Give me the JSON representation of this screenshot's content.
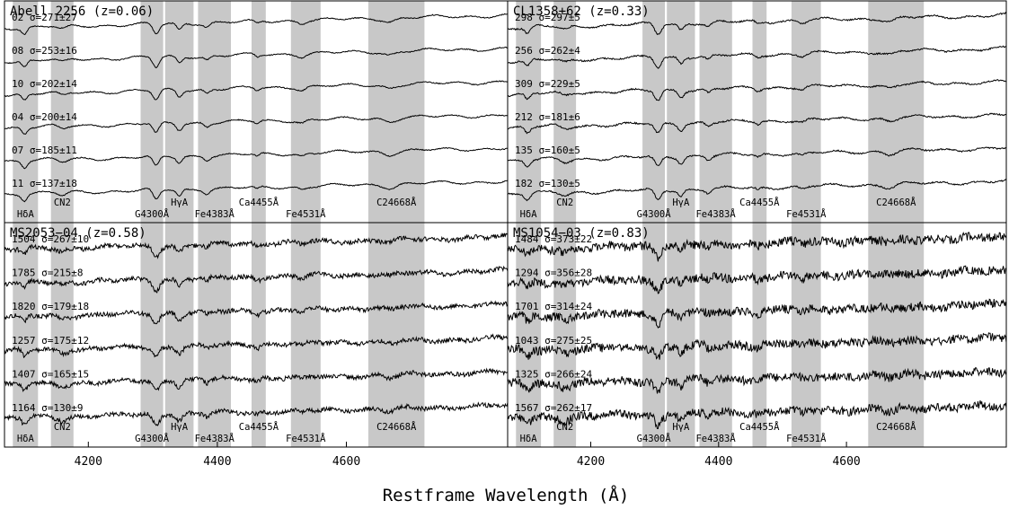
{
  "chart_data": {
    "type": "line",
    "xlabel": "Restframe Wavelength (Å)",
    "xlim": [
      4070,
      4850
    ],
    "xticks": [
      4200,
      4400,
      4600
    ],
    "bands": [
      {
        "name": "Hδ_A",
        "lo": 4083,
        "hi": 4122,
        "label": "HδA",
        "sub": "A"
      },
      {
        "name": "CN_2",
        "lo": 4142,
        "hi": 4177,
        "label": "CN2",
        "sub": "2"
      },
      {
        "name": "G4300",
        "lo": 4281,
        "hi": 4316,
        "label": "G4300Å",
        "sub": ""
      },
      {
        "name": "Hγ_A",
        "lo": 4319,
        "hi": 4363,
        "label": "HγA",
        "sub": "A"
      },
      {
        "name": "Fe4383",
        "lo": 4370,
        "hi": 4421,
        "label": "Fe4383Å",
        "sub": ""
      },
      {
        "name": "Ca4455",
        "lo": 4453,
        "hi": 4475,
        "label": "Ca4455Å",
        "sub": ""
      },
      {
        "name": "Fe4531",
        "lo": 4514,
        "hi": 4560,
        "label": "Fe4531Å",
        "sub": ""
      },
      {
        "name": "C_2 4668",
        "lo": 4634,
        "hi": 4721,
        "label": "C24668Å",
        "sub": "2"
      }
    ],
    "panels": [
      {
        "title": "Abell 2256 (z=0.06)",
        "spectra": [
          {
            "label": "02 σ=271±27"
          },
          {
            "label": "08 σ=253±16"
          },
          {
            "label": "10 σ=202±14"
          },
          {
            "label": "04 σ=200±14"
          },
          {
            "label": "07 σ=185±11"
          },
          {
            "label": "11 σ=137±18"
          }
        ]
      },
      {
        "title": "CL1358+62 (z=0.33)",
        "spectra": [
          {
            "label": "298 σ=297±5"
          },
          {
            "label": "256 σ=262±4"
          },
          {
            "label": "309 σ=229±5"
          },
          {
            "label": "212 σ=181±6"
          },
          {
            "label": "135 σ=160±5"
          },
          {
            "label": "182 σ=130±5"
          }
        ]
      },
      {
        "title": "MS2053−04 (z=0.58)",
        "spectra": [
          {
            "label": "1504 σ=267±10"
          },
          {
            "label": "1785 σ=215±8"
          },
          {
            "label": "1820 σ=179±18"
          },
          {
            "label": "1257 σ=175±12"
          },
          {
            "label": "1407 σ=165±15"
          },
          {
            "label": "1164 σ=130±9"
          }
        ]
      },
      {
        "title": "MS1054−03 (z=0.83)",
        "spectra": [
          {
            "label": "1484 σ=373±22"
          },
          {
            "label": "1294 σ=356±28"
          },
          {
            "label": "1701 σ=314±24"
          },
          {
            "label": "1043 σ=275±25"
          },
          {
            "label": "1325 σ=266±24"
          },
          {
            "label": "1567 σ=262±17"
          }
        ]
      }
    ]
  }
}
